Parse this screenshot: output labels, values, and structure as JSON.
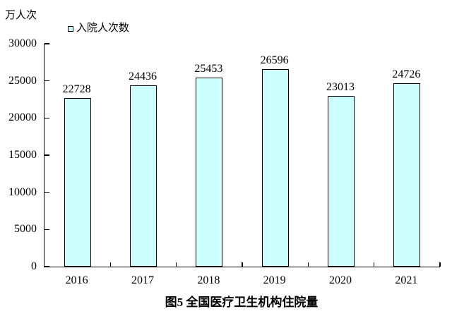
{
  "chart_data": {
    "type": "bar",
    "title": "图5 全国医疗卫生机构住院量",
    "unit_label": "万人次",
    "legend": "入院人次数",
    "legend_position": "top-left",
    "categories": [
      "2016",
      "2017",
      "2018",
      "2019",
      "2020",
      "2021"
    ],
    "values": [
      22728,
      24436,
      25453,
      26596,
      23013,
      24726
    ],
    "ylim": [
      0,
      30000
    ],
    "ytick_step": 5000,
    "grid": false,
    "bar_fill": "#ccffff",
    "bar_border": "#000000",
    "axis_color": "#000000",
    "text_color": "#000000"
  }
}
